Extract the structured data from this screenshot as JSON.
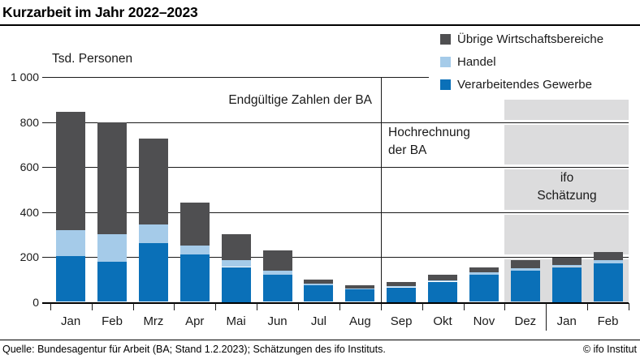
{
  "title": "Kurzarbeit im Jahr 2022–2023",
  "footer": {
    "source": "Quelle: Bundesagentur für Arbeit (BA; Stand 1.2.2023); Schätzungen des ifo Instituts.",
    "copyright": "© ifo Institut"
  },
  "legend": [
    {
      "label": "Übrige Wirtschaftsbereiche",
      "color": "#4f4f51"
    },
    {
      "label": "Handel",
      "color": "#a5cbe9"
    },
    {
      "label": "Verarbeitendes Gewerbe",
      "color": "#0a70b8"
    }
  ],
  "annotations": {
    "final": "Endgültige Zahlen der BA",
    "projection_line1": "Hochrechnung",
    "projection_line2": "der BA",
    "estimate_line1": "ifo",
    "estimate_line2": "Schätzung"
  },
  "colors": {
    "manufacturing": "#0a70b8",
    "trade": "#a5cbe9",
    "other": "#4f4f51",
    "shaded_region": "#dcdcdd",
    "grid": "#1a1a1a"
  },
  "chart_data": {
    "type": "bar",
    "stacked": true,
    "title": "Kurzarbeit im Jahr 2022–2023",
    "unit_label": "Tsd. Personen",
    "categories": [
      "Jan",
      "Feb",
      "Mrz",
      "Apr",
      "Mai",
      "Jun",
      "Jul",
      "Aug",
      "Sep",
      "Okt",
      "Nov",
      "Dez",
      "Jan",
      "Feb"
    ],
    "series": [
      {
        "name": "Verarbeitendes Gewerbe",
        "color": "#0a70b8",
        "values": [
          205,
          180,
          260,
          210,
          155,
          120,
          75,
          55,
          65,
          90,
          120,
          140,
          155,
          170
        ]
      },
      {
        "name": "Handel",
        "color": "#a5cbe9",
        "values": [
          115,
          120,
          85,
          40,
          30,
          20,
          5,
          5,
          5,
          5,
          10,
          10,
          10,
          15
        ]
      },
      {
        "name": "Übrige Wirtschaftsbereiche",
        "color": "#4f4f51",
        "values": [
          525,
          500,
          380,
          190,
          115,
          90,
          20,
          15,
          20,
          25,
          25,
          35,
          30,
          35
        ]
      }
    ],
    "totals": [
      845,
      800,
      725,
      440,
      300,
      230,
      100,
      75,
      90,
      120,
      155,
      185,
      195,
      220
    ],
    "ylim": [
      0,
      1000
    ],
    "yticks": [
      0,
      200,
      400,
      600,
      800,
      1000
    ],
    "ytick_labels": [
      "0",
      "200",
      "400",
      "600",
      "800",
      "1 000"
    ],
    "grid": "horizontal",
    "legend_position": "top-right",
    "region_labels": [
      {
        "label": "Endgültige Zahlen der BA",
        "categories": "Jan–Aug"
      },
      {
        "label": "Hochrechnung der BA",
        "categories": "Sep–Nov"
      },
      {
        "label": "ifo Schätzung",
        "categories": "Dez–Feb",
        "shaded": true
      }
    ],
    "separators": [
      {
        "after_category_index": 7
      },
      {
        "after_category_index": 11
      }
    ]
  }
}
